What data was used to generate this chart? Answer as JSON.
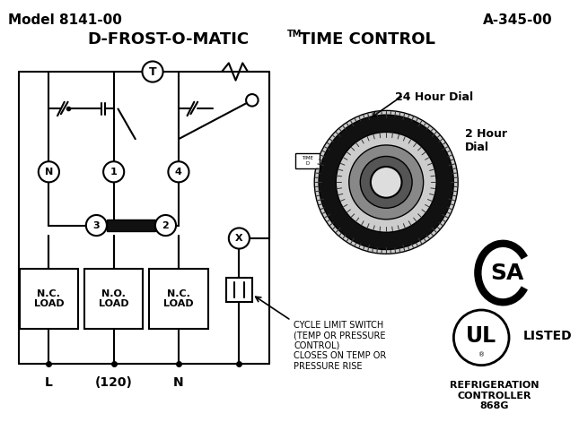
{
  "title_left": "Model 8141-00",
  "title_right": "A-345-00",
  "title_main1": "D-FROST-O-MATIC",
  "title_tm": "TM",
  "title_main2": " TIME CONTROL",
  "load_labels": [
    "N.C.\nLOAD",
    "N.O.\nLOAD",
    "N.C.\nLOAD"
  ],
  "terminal_labels": [
    "N",
    "1",
    "4"
  ],
  "bottom_labels": [
    "L",
    "(120)",
    "N"
  ],
  "cycle_switch_text": "CYCLE LIMIT SWITCH\n(TEMP OR PRESSURE\nCONTROL)\nCLOSES ON TEMP OR\nPRESSURE RISE",
  "hour24_label": "24 Hour Dial",
  "hour2_label": "2 Hour\nDial",
  "ul_listed": "LISTED",
  "refrig_text": "REFRIGERATION\nCONTROLLER\n868G",
  "bg_color": "#ffffff"
}
